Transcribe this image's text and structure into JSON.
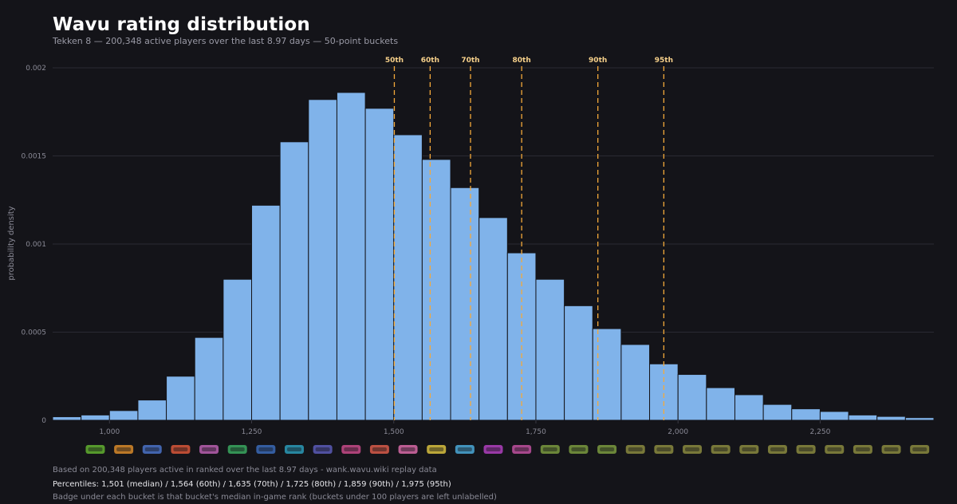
{
  "header": {
    "title": "Wavu rating distribution",
    "subtitle": "Tekken 8 — 200,348 active players over the last 8.97 days — 50-point buckets"
  },
  "footer": {
    "source": "Based on 200,348 players active in ranked over the last 8.97 days - wank.wavu.wiki replay data",
    "percentiles": "Percentiles: 1,501 (median) / 1,564 (60th) / 1,635 (70th) / 1,725 (80th) / 1,859 (90th) / 1,975 (95th)",
    "note": "Badge under each bucket is that bucket's median in-game rank (buckets under 100 players are left unlabelled)"
  },
  "colors": {
    "background": "#141419",
    "bar_fill": "#80b3ea",
    "bar_stroke": "#141419",
    "percentile_line": "#f4a93a",
    "percentile_label": "#f6d08a",
    "grid": "#2a2a33",
    "tick_label": "#8a8a96"
  },
  "chart_data": {
    "type": "bar",
    "ylabel": "probability density",
    "xlim": [
      900,
      2450
    ],
    "ylim": [
      0,
      0.002
    ],
    "bin_width": 50,
    "bin_starts": [
      900,
      950,
      1000,
      1050,
      1100,
      1150,
      1200,
      1250,
      1300,
      1350,
      1400,
      1450,
      1500,
      1550,
      1600,
      1650,
      1700,
      1750,
      1800,
      1850,
      1900,
      1950,
      2000,
      2050,
      2100,
      2150,
      2200,
      2250,
      2300,
      2350,
      2400
    ],
    "values": [
      2e-05,
      3e-05,
      5.5e-05,
      0.000115,
      0.00025,
      0.00047,
      0.0008,
      0.00122,
      0.00158,
      0.00182,
      0.00186,
      0.00177,
      0.00162,
      0.00148,
      0.00132,
      0.00115,
      0.00095,
      0.0008,
      0.00065,
      0.00052,
      0.00043,
      0.00032,
      0.00026,
      0.000185,
      0.000145,
      9e-05,
      6.5e-05,
      5e-05,
      3e-05,
      2.2e-05,
      1.5e-05
    ],
    "x_ticks": [
      {
        "value": 1000,
        "label": "1,000"
      },
      {
        "value": 1250,
        "label": "1,250"
      },
      {
        "value": 1500,
        "label": "1,500"
      },
      {
        "value": 1750,
        "label": "1,750"
      },
      {
        "value": 2000,
        "label": "2,000"
      },
      {
        "value": 2250,
        "label": "2,250"
      }
    ],
    "y_ticks": [
      {
        "value": 0,
        "label": "0"
      },
      {
        "value": 0.0005,
        "label": "0.0005"
      },
      {
        "value": 0.001,
        "label": "0.001"
      },
      {
        "value": 0.0015,
        "label": "0.0015"
      },
      {
        "value": 0.002,
        "label": "0.002"
      }
    ],
    "percentiles": [
      {
        "label": "50th",
        "value": 1501
      },
      {
        "label": "60th",
        "value": 1564
      },
      {
        "label": "70th",
        "value": 1635
      },
      {
        "label": "80th",
        "value": 1725
      },
      {
        "label": "90th",
        "value": 1859
      },
      {
        "label": "95th",
        "value": 1975
      }
    ],
    "grid": true,
    "rank_badge_colors": [
      "#1fb5b0",
      "#62b030",
      "#d88a2a",
      "#4a72c8",
      "#d8563a",
      "#b85fb0",
      "#3aa860",
      "#3a6ab8",
      "#2a9ab8",
      "#5a5ab8",
      "#c84a8a",
      "#d85a4a",
      "#d86aa8",
      "#d8c040",
      "#4aa8d8",
      "#b040c0",
      "#c050a0",
      "#7a9a40",
      "#7a9a40",
      "#7a9a40",
      "#8a8a40",
      "#8a8a40",
      "#8a8a40",
      "#8a8a40",
      "#8a8a40",
      "#8a8a40",
      "#8a8a40",
      "#8a8a40",
      "#8a8a40",
      "#8a8a40",
      "#8a8a40"
    ]
  }
}
